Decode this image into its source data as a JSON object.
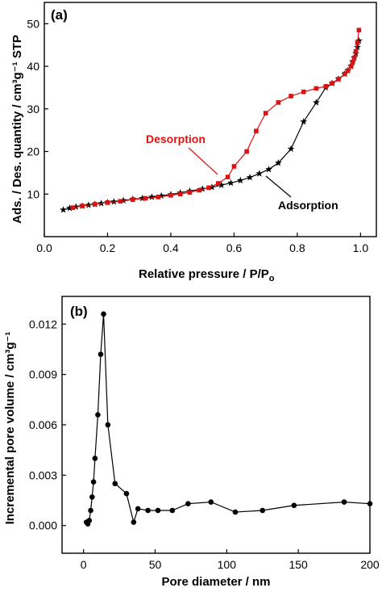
{
  "chart_data": [
    {
      "type": "line",
      "panel_label": "(a)",
      "xlabel": "Relative pressure / P/P",
      "xlabel_sub": "o",
      "ylabel": "Ads. / Des. quantity / cm³g⁻¹ STP",
      "xlim": [
        0.0,
        1.05
      ],
      "ylim": [
        0,
        55
      ],
      "xticks": [
        0.0,
        0.2,
        0.4,
        0.6,
        0.8,
        1.0
      ],
      "xtick_labels": [
        "0.0",
        "0.2",
        "0.4",
        "0.6",
        "0.8",
        "1.0"
      ],
      "yticks": [
        10,
        20,
        30,
        40,
        50
      ],
      "ytick_labels": [
        "10",
        "20",
        "30",
        "40",
        "50"
      ],
      "grid": false,
      "series": [
        {
          "name": "Adsorption",
          "color": "#000000",
          "marker": "star",
          "x": [
            0.06,
            0.08,
            0.1,
            0.12,
            0.14,
            0.16,
            0.18,
            0.2,
            0.22,
            0.25,
            0.28,
            0.31,
            0.34,
            0.37,
            0.4,
            0.43,
            0.46,
            0.5,
            0.53,
            0.56,
            0.59,
            0.62,
            0.65,
            0.68,
            0.71,
            0.74,
            0.78,
            0.82,
            0.86,
            0.89,
            0.91,
            0.93,
            0.95,
            0.96,
            0.97,
            0.975,
            0.98,
            0.985,
            0.99,
            0.995
          ],
          "y": [
            6.3,
            6.7,
            7.0,
            7.2,
            7.4,
            7.6,
            7.8,
            8.0,
            8.2,
            8.5,
            8.8,
            9.0,
            9.3,
            9.6,
            9.9,
            10.3,
            10.7,
            11.2,
            11.6,
            12.1,
            12.6,
            13.2,
            13.9,
            14.8,
            15.8,
            17.3,
            20.6,
            27.0,
            31.5,
            35.0,
            36.0,
            37.0,
            38.2,
            39.0,
            40.0,
            41.0,
            42.0,
            43.0,
            44.5,
            46.0
          ]
        },
        {
          "name": "Desorption",
          "color": "#dd1111",
          "marker": "square",
          "x": [
            0.995,
            0.99,
            0.985,
            0.98,
            0.975,
            0.97,
            0.96,
            0.95,
            0.93,
            0.91,
            0.89,
            0.86,
            0.82,
            0.78,
            0.74,
            0.7,
            0.67,
            0.64,
            0.6,
            0.58,
            0.55,
            0.52,
            0.49,
            0.46,
            0.43,
            0.4,
            0.36,
            0.32,
            0.28,
            0.24,
            0.2,
            0.16,
            0.12,
            0.09
          ],
          "y": [
            48.5,
            45.5,
            43.5,
            42.0,
            41.0,
            40.0,
            39.0,
            38.2,
            37.0,
            36.0,
            35.3,
            34.8,
            34.0,
            33.0,
            31.5,
            29.0,
            24.8,
            20.0,
            16.5,
            14.0,
            12.5,
            11.5,
            10.9,
            10.4,
            10.0,
            9.7,
            9.3,
            9.0,
            8.7,
            8.3,
            8.0,
            7.6,
            7.2,
            6.8
          ]
        }
      ],
      "annotations": [
        {
          "text": "Desorption",
          "color": "#dd1111"
        },
        {
          "text": "Adsorption",
          "color": "#000000"
        }
      ]
    },
    {
      "type": "line",
      "panel_label": "(b)",
      "xlabel": "Pore diameter / nm",
      "ylabel": "Incremental pore volume / cm³g⁻¹",
      "xlim": [
        -15,
        200
      ],
      "ylim": [
        -0.00165,
        0.01365
      ],
      "xticks": [
        0,
        50,
        100,
        150,
        200
      ],
      "xtick_labels": [
        "0",
        "50",
        "100",
        "150",
        "200"
      ],
      "yticks": [
        0.0,
        0.003,
        0.006,
        0.009,
        0.012
      ],
      "ytick_labels": [
        "0.000",
        "0.003",
        "0.006",
        "0.009",
        "0.012"
      ],
      "grid": false,
      "series": [
        {
          "color": "#000000",
          "marker": "circle",
          "x": [
            2,
            3,
            4,
            5,
            6,
            7,
            8,
            10,
            12,
            14,
            17,
            22,
            30,
            35,
            38,
            45,
            52,
            62,
            73,
            89,
            106,
            125,
            147,
            182,
            200
          ],
          "y": [
            0.0002,
            0.0001,
            0.0003,
            0.0009,
            0.0017,
            0.0026,
            0.004,
            0.0066,
            0.0102,
            0.0126,
            0.006,
            0.0025,
            0.0019,
            0.0002,
            0.001,
            0.0009,
            0.0009,
            0.0009,
            0.0013,
            0.0014,
            0.0008,
            0.0009,
            0.0012,
            0.0014,
            0.0013
          ]
        }
      ]
    }
  ]
}
